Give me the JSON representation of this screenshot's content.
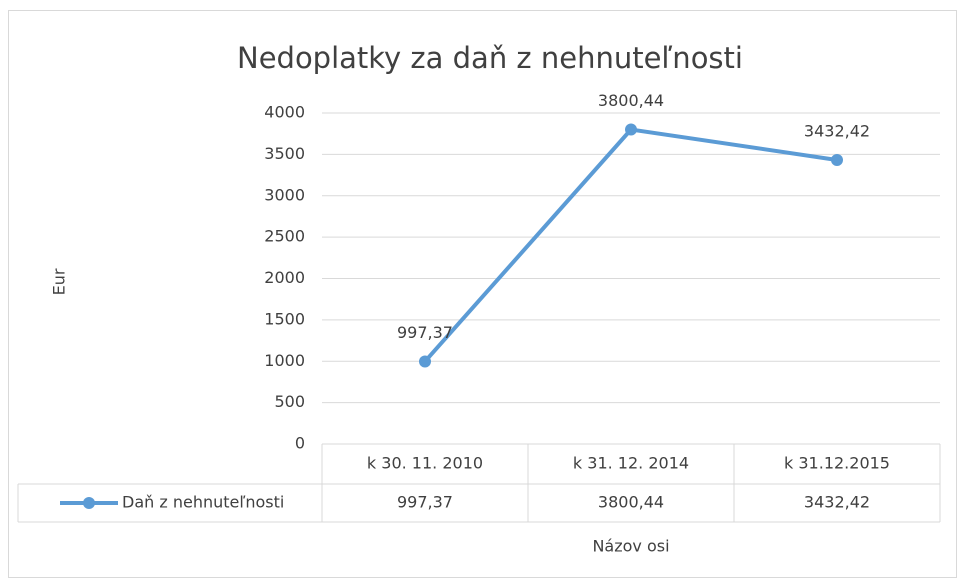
{
  "chart_data": {
    "type": "line",
    "title": "Nedoplatky za daň z nehnuteľnosti",
    "y_label": "Eur",
    "x_label": "Názov osi",
    "categories": [
      "k 30. 11. 2010",
      "k 31. 12. 2014",
      "k 31.12.2015"
    ],
    "series": [
      {
        "name": "Daň z nehnuteľnosti",
        "color": "#5b9bd5",
        "values": [
          997.37,
          3800.44,
          3432.42
        ],
        "value_labels": [
          "997,37",
          "3800,44",
          "3432,42"
        ]
      }
    ],
    "ylim": [
      0,
      4000
    ],
    "yticks": [
      0,
      500,
      1000,
      1500,
      2000,
      2500,
      3000,
      3500,
      4000
    ],
    "grid": true
  }
}
